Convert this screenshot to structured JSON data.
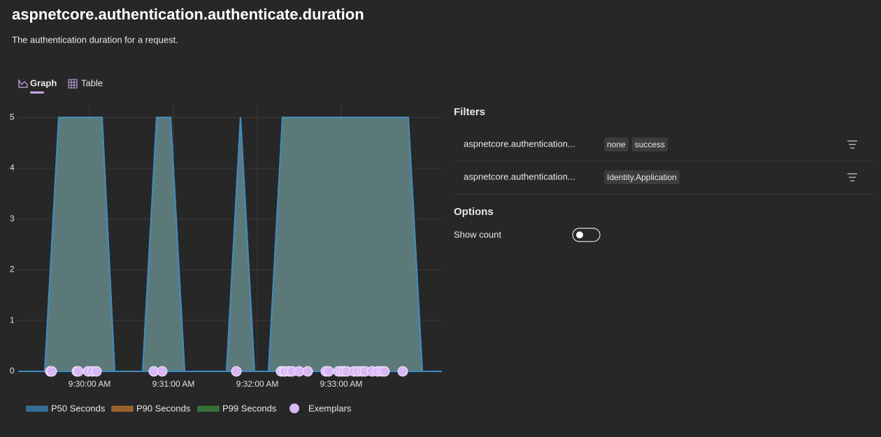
{
  "header": {
    "title": "aspnetcore.authentication.authenticate.duration",
    "subtitle": "The authentication duration for a request."
  },
  "tabs": [
    "Graph",
    "Table"
  ],
  "chart_data": {
    "type": "area",
    "xlim": [
      "9:29:09 AM",
      "9:34:12 AM"
    ],
    "xticks": [
      "9:30:00 AM",
      "9:31:00 AM",
      "9:32:00 AM",
      "9:33:00 AM"
    ],
    "ylim": [
      0,
      5.25
    ],
    "yticks": [
      0,
      1,
      2,
      3,
      4,
      5
    ],
    "grid": true,
    "x": [
      "9:29:09 AM",
      "9:29:28 AM",
      "9:29:38 AM",
      "9:30:09 AM",
      "9:30:18 AM",
      "9:30:38 AM",
      "9:30:48 AM",
      "9:30:58 AM",
      "9:31:08 AM",
      "9:31:38 AM",
      "9:31:48 AM",
      "9:31:58 AM",
      "9:32:08 AM",
      "9:32:18 AM",
      "9:33:48 AM",
      "9:33:58 AM",
      "9:34:12 AM"
    ],
    "series": [
      {
        "name": "P50 Seconds",
        "color": "#3b8ac4",
        "values": [
          0,
          0,
          5,
          5,
          0,
          0,
          5,
          5,
          0,
          0,
          5,
          0,
          0,
          5,
          5,
          0,
          0
        ]
      },
      {
        "name": "P90 Seconds",
        "color": "#c8772f",
        "values": [
          0,
          0,
          5,
          5,
          0,
          0,
          5,
          5,
          0,
          0,
          5,
          0,
          0,
          5,
          5,
          0,
          0
        ]
      },
      {
        "name": "P99 Seconds",
        "color": "#3c8f3c",
        "values": [
          0,
          0,
          5,
          5,
          0,
          0,
          5,
          5,
          0,
          0,
          5,
          0,
          0,
          5,
          5,
          0,
          0
        ]
      }
    ],
    "exemplars": {
      "name": "Exemplars",
      "color": "#d9b8f7",
      "x": [
        "9:29:32 AM",
        "9:29:33 AM",
        "9:29:51 AM",
        "9:29:52 AM",
        "9:29:59 AM",
        "9:30:02 AM",
        "9:30:05 AM",
        "9:30:46 AM",
        "9:30:52 AM",
        "9:31:45 AM",
        "9:32:17 AM",
        "9:32:19 AM",
        "9:32:20 AM",
        "9:32:23 AM",
        "9:32:25 AM",
        "9:32:30 AM",
        "9:32:36 AM",
        "9:32:49 AM",
        "9:32:51 AM",
        "9:32:58 AM",
        "9:33:00 AM",
        "9:33:02 AM",
        "9:33:04 AM",
        "9:33:09 AM",
        "9:33:12 AM",
        "9:33:15 AM",
        "9:33:17 AM",
        "9:33:22 AM",
        "9:33:26 AM",
        "9:33:29 AM",
        "9:33:31 AM",
        "9:33:44 AM"
      ],
      "values": [
        0,
        0,
        0,
        0,
        0,
        0,
        0,
        0,
        0,
        0,
        0,
        0,
        0,
        0,
        0,
        0,
        0,
        0,
        0,
        0,
        0,
        0,
        0,
        0,
        0,
        0,
        0,
        0,
        0,
        0,
        0,
        0
      ]
    }
  },
  "filters": {
    "title": "Filters",
    "rows": [
      {
        "name": "aspnetcore.authentication...",
        "tags": [
          "none",
          "success"
        ]
      },
      {
        "name": "aspnetcore.authentication...",
        "tags": [
          "Identity.Application"
        ]
      }
    ]
  },
  "options": {
    "title": "Options",
    "show_count_label": "Show count"
  }
}
